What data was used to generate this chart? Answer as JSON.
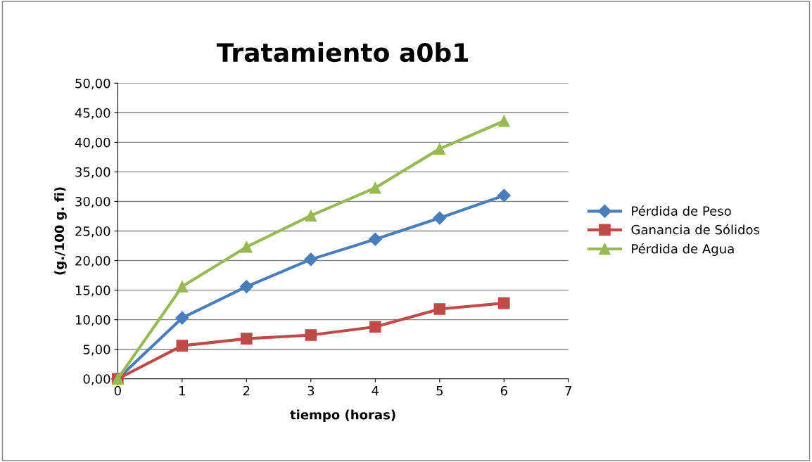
{
  "chart_data": {
    "type": "line",
    "title": "Tratamiento a0b1",
    "xlabel": "tiempo (horas)",
    "ylabel": "(g./100 g. fi)",
    "x": [
      0,
      1,
      2,
      3,
      4,
      5,
      6
    ],
    "series": [
      {
        "name": "Pérdida de Peso",
        "color": "#4a7ebb",
        "marker": "diamond",
        "values": [
          0,
          10.3,
          15.6,
          20.2,
          23.6,
          27.2,
          31.0
        ]
      },
      {
        "name": "Ganancia de Sólidos",
        "color": "#be4b48",
        "marker": "square",
        "values": [
          0,
          5.6,
          6.8,
          7.4,
          8.8,
          11.8,
          12.8
        ]
      },
      {
        "name": "Pérdida de Agua",
        "color": "#98b954",
        "marker": "triangle",
        "values": [
          0,
          15.6,
          22.3,
          27.6,
          32.3,
          38.9,
          43.6
        ]
      }
    ],
    "xlim": [
      0,
      7
    ],
    "xticks": [
      0,
      1,
      2,
      3,
      4,
      5,
      6,
      7
    ],
    "ylim": [
      0,
      50
    ],
    "yticks": [
      {
        "value": 0,
        "label": "0,00"
      },
      {
        "value": 5,
        "label": "5,00"
      },
      {
        "value": 10,
        "label": "10,00"
      },
      {
        "value": 15,
        "label": "15,00"
      },
      {
        "value": 20,
        "label": "20,00"
      },
      {
        "value": 25,
        "label": "25,00"
      },
      {
        "value": 30,
        "label": "30,00"
      },
      {
        "value": 35,
        "label": "35,00"
      },
      {
        "value": 40,
        "label": "40,00"
      },
      {
        "value": 45,
        "label": "45,00"
      },
      {
        "value": 50,
        "label": "50,00"
      }
    ],
    "grid": "y",
    "legend": "right",
    "line_style": "solid"
  }
}
